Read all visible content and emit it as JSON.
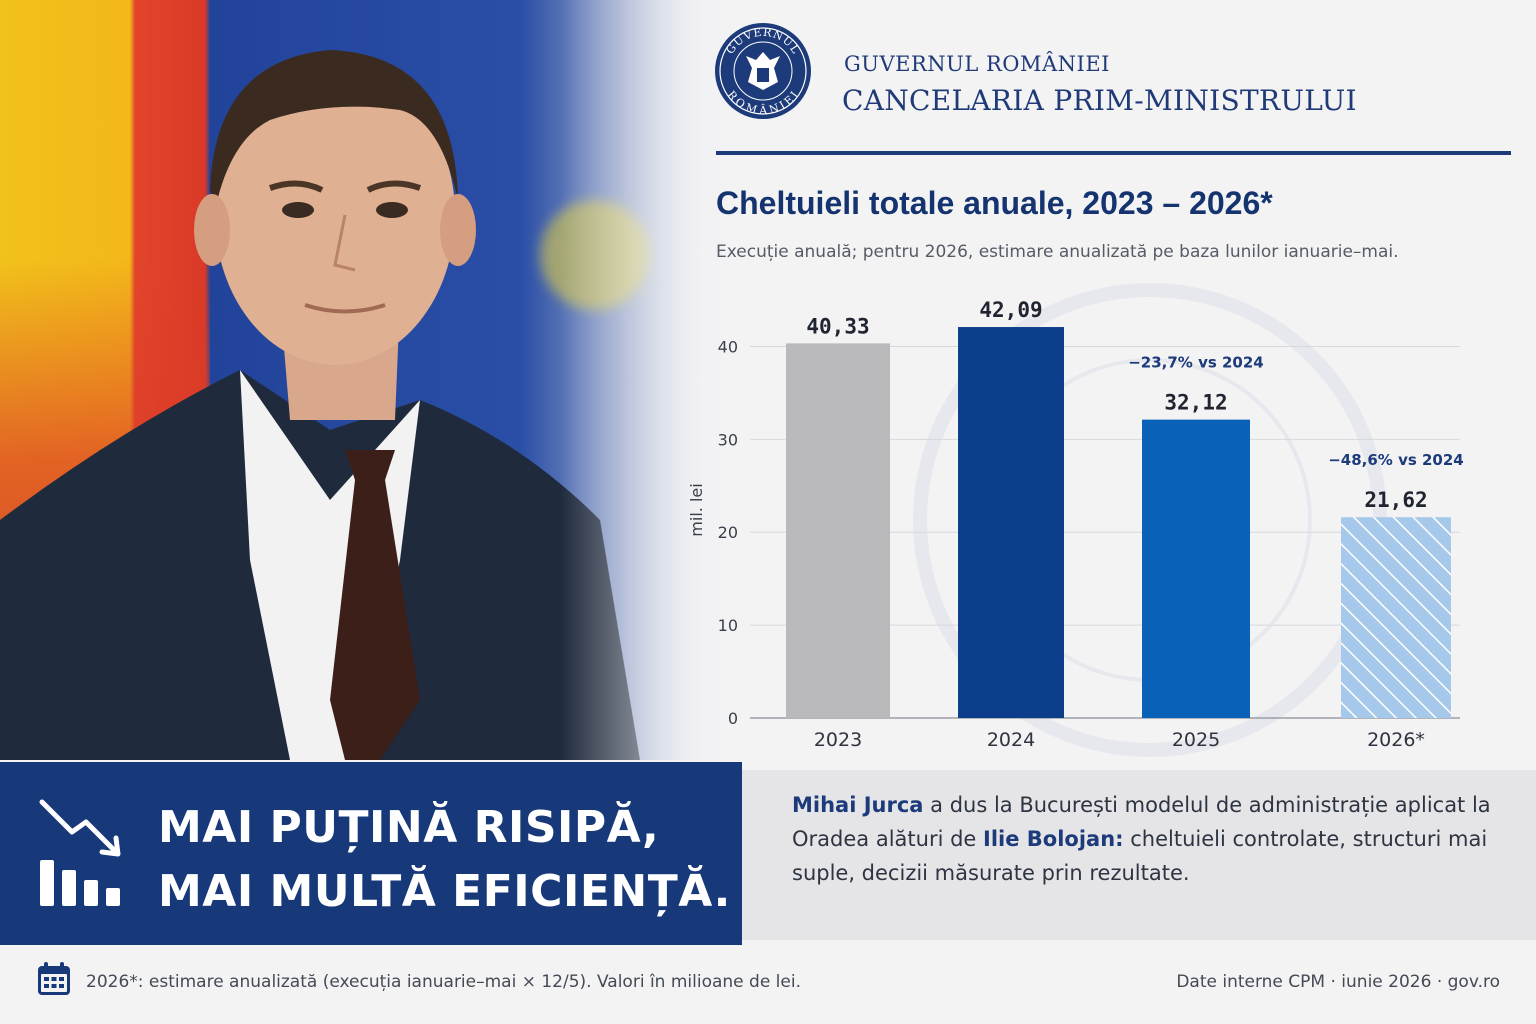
{
  "header": {
    "line1": "GUVERNUL ROMÂNIEI",
    "line2": "CANCELARIA PRIM-MINISTRULUI",
    "seal_text_top": "GUVERNUL",
    "seal_text_bottom": "ROMÂNIEI"
  },
  "chart_data": {
    "type": "bar",
    "title": "Cheltuieli totale anuale, 2023 – 2026*",
    "subtitle": "Execuție anuală; pentru 2026, estimare anualizată pe baza lunilor ianuarie–mai.",
    "ylabel": "mil. lei",
    "xlabel": "",
    "ylim": [
      0,
      45
    ],
    "yticks": [
      "0",
      "10",
      "20",
      "30",
      "40"
    ],
    "categories": [
      "2023",
      "2024",
      "2025",
      "2026*"
    ],
    "values": [
      40.33,
      42.09,
      32.12,
      21.62
    ],
    "value_labels": [
      "40,33",
      "42,09",
      "32,12",
      "21,62"
    ],
    "annotations": [
      "",
      "",
      "−23,7% vs 2024",
      "−48,6% vs 2024"
    ],
    "bar_colors": [
      "#b9b9bb",
      "#0d3e8c",
      "#0a62b8",
      "#9cc3e8"
    ],
    "hatched": [
      false,
      false,
      false,
      true
    ],
    "grid": true
  },
  "banner": {
    "line1": "MAI PUȚINĂ RISIPĂ,",
    "line2": "MAI MULTĂ EFICIENȚĂ.",
    "icon": "chart-decrease-icon"
  },
  "description": {
    "name1": "Mihai Jurca",
    "text1": " a dus la București modelul de administrație aplicat la Oradea alături de ",
    "name2": "Ilie Bolojan:",
    "text2": " cheltuieli controlate, structuri mai suple, decizii măsurate prin rezultate."
  },
  "footer": {
    "icon": "calendar-icon",
    "footnote": "2026*: estimare anualizată (execuția ianuarie–mai × 12/5). Valori în milioane de lei.",
    "credits": "Date interne CPM · iunie 2026 · gov.ro"
  },
  "colors": {
    "brand_navy": "#17397a",
    "accent_blue": "#0a62b8"
  }
}
